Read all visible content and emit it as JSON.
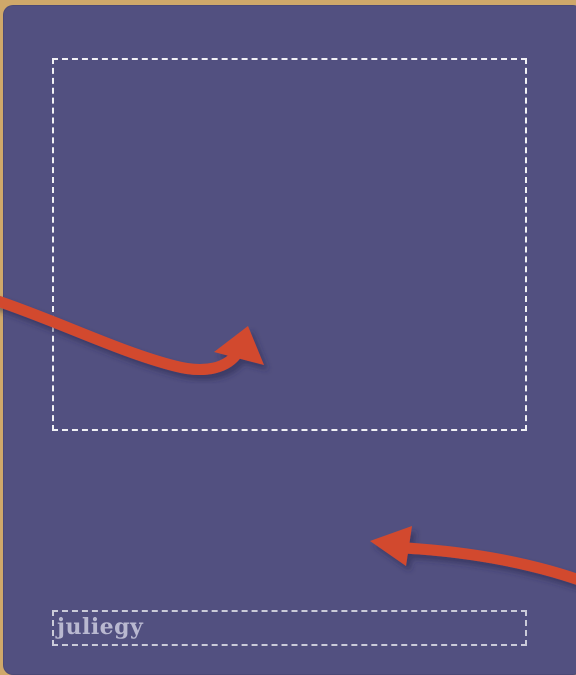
{
  "card": {
    "background_color": "#525080",
    "frame_color": "#cfa86a",
    "caption": "juliegy"
  },
  "arrows": {
    "color": "#d24a2e",
    "items": [
      {
        "name": "arrow-into-photo-area"
      },
      {
        "name": "arrow-to-card-body"
      }
    ]
  }
}
